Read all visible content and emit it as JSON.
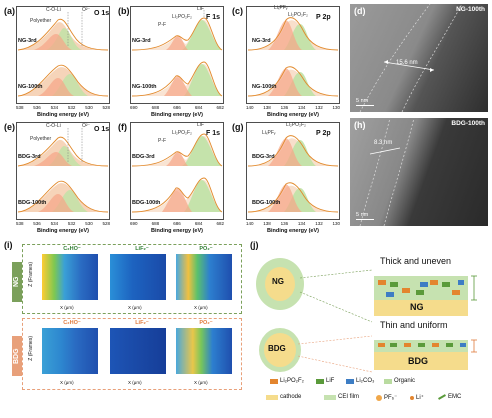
{
  "panels": {
    "a": {
      "label": "(a)",
      "element": "O 1s",
      "top_sample": "NG-3rd",
      "bottom_sample": "NG-100th",
      "anno": [
        "C-O-Li",
        "O²⁻",
        "Polyether"
      ],
      "xlabel": "Binding energy (eV)",
      "ticks": [
        "538",
        "536",
        "534",
        "532",
        "530",
        "528"
      ]
    },
    "b": {
      "label": "(b)",
      "element": "F 1s",
      "top_sample": "NG-3rd",
      "bottom_sample": "NG-100th",
      "anno": [
        "LiF",
        "Li₂PO₂F₂",
        "P-F"
      ],
      "xlabel": "Binding energy (eV)",
      "ticks": [
        "690",
        "688",
        "686",
        "684",
        "682"
      ]
    },
    "c": {
      "label": "(c)",
      "element": "P 2p",
      "top_sample": "NG-3rd",
      "bottom_sample": "NG-100th",
      "anno": [
        "LiₓPFᵧ",
        "Li₂PO₂F₂"
      ],
      "xlabel": "Binding energy (eV)",
      "ticks": [
        "140",
        "138",
        "136",
        "134",
        "132",
        "130"
      ]
    },
    "d": {
      "label": "(d)",
      "tag": "NG-100th",
      "measure": "15.6 nm",
      "scale": "5 nm"
    },
    "e": {
      "label": "(e)",
      "element": "O 1s",
      "top_sample": "BDG-3rd",
      "bottom_sample": "BDG-100th",
      "anno": [
        "C-O-Li",
        "O²⁻",
        "Polyether"
      ],
      "xlabel": "Binding energy (eV)",
      "ticks": [
        "538",
        "536",
        "534",
        "532",
        "530",
        "528"
      ]
    },
    "f": {
      "label": "(f)",
      "element": "F 1s",
      "top_sample": "BDG-3rd",
      "bottom_sample": "BDG-100th",
      "anno": [
        "LiF",
        "Li₂PO₂F₂",
        "P-F"
      ],
      "xlabel": "Binding energy (eV)",
      "ticks": [
        "690",
        "688",
        "686",
        "684",
        "682"
      ]
    },
    "g": {
      "label": "(g)",
      "element": "P 2p",
      "top_sample": "BDG-3rd",
      "bottom_sample": "BDG-100th",
      "anno": [
        "Li₂PO₂F₂",
        "LiₓPFᵧ"
      ],
      "xlabel": "Binding energy (eV)",
      "ticks": [
        "140",
        "138",
        "136",
        "134",
        "132",
        "130"
      ]
    },
    "h": {
      "label": "(h)",
      "tag": "BDG-100th",
      "measure": "8.3 nm",
      "scale": "5 nm"
    }
  },
  "tof": {
    "label": "(i)",
    "ng_label": "NG",
    "bdg_label": "BDG",
    "titles": [
      "C₂HO⁻",
      "LiF₂⁻",
      "PO₂⁻"
    ],
    "xlabel": "X (μm)",
    "ylabel": "Z (Frames)",
    "xticks": [
      "0",
      "10",
      "20",
      "30",
      "40"
    ],
    "yticks": [
      "0",
      "5",
      "10",
      "15",
      "20",
      "25"
    ]
  },
  "schematic": {
    "label": "(j)",
    "ng_core": "NG",
    "bdg_core": "BDG",
    "ng_desc": "Thick and uneven",
    "bdg_desc": "Thin and uniform",
    "legend1": [
      "Li₂PO₂F₂",
      "LiF",
      "Li₂CO₃",
      "Organic"
    ],
    "legend2": [
      "cathode",
      "CEI film",
      "PF₆⁻",
      "Li⁺",
      "EMC"
    ],
    "colors": {
      "Li2PO2F2": "#e3852e",
      "LiF": "#5a9a3a",
      "Li2CO3": "#3d7dc4",
      "Organic": "#b9dba0",
      "cathode": "#f5dc8c",
      "cei": "#c6e2b0"
    }
  }
}
